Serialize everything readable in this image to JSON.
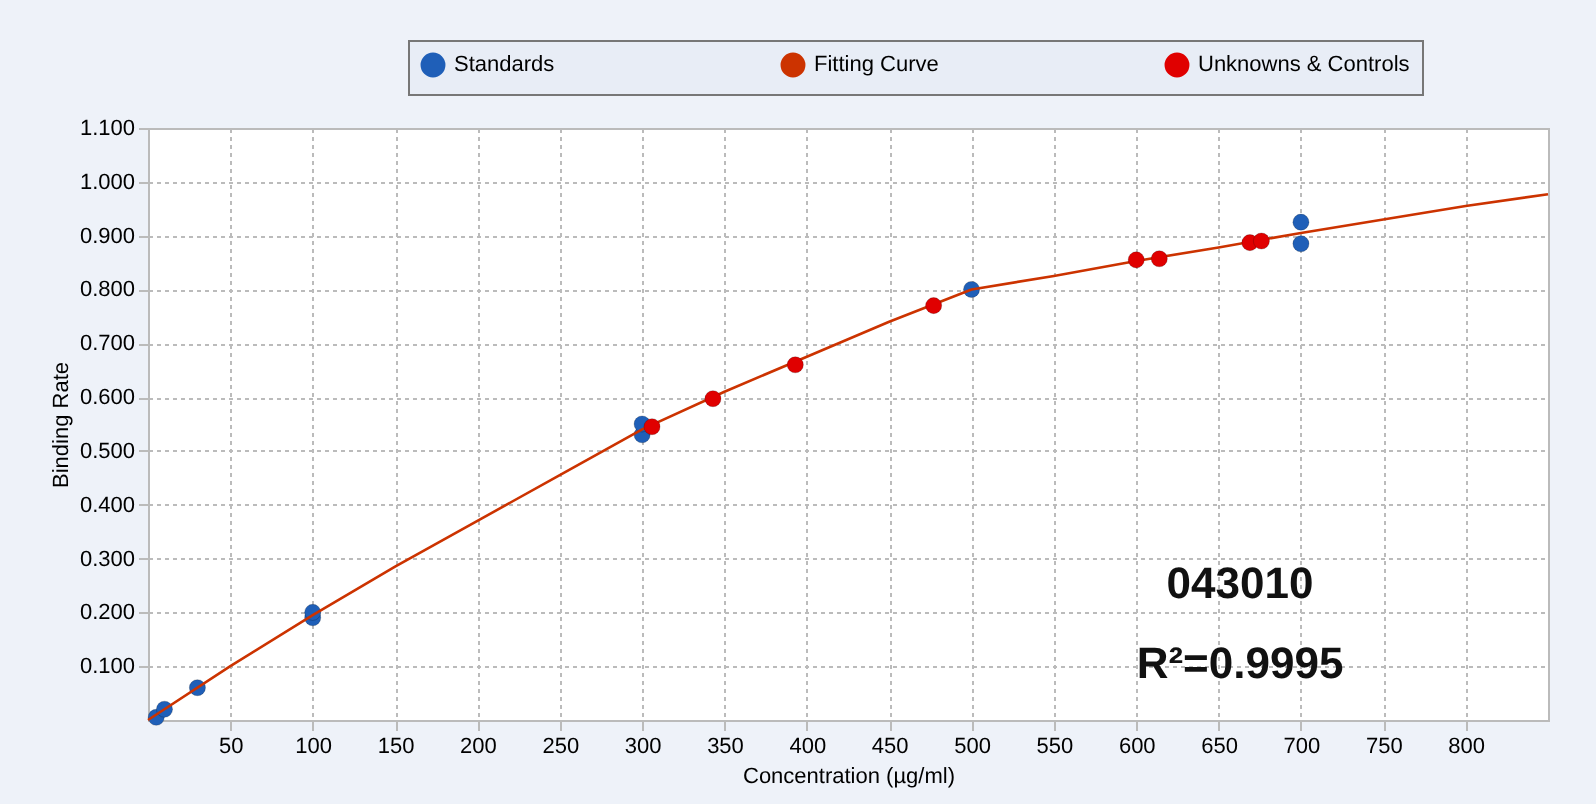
{
  "chart_data": {
    "type": "scatter",
    "xlabel": "Concentration (µg/ml)",
    "ylabel": "Binding Rate",
    "annotations": [
      "043010",
      "R²=0.9995"
    ],
    "xlim": [
      0,
      850
    ],
    "xticks": [
      50,
      100,
      150,
      200,
      250,
      300,
      350,
      400,
      450,
      500,
      550,
      600,
      650,
      700,
      750,
      800
    ],
    "ylim": [
      0,
      1.1
    ],
    "yticks": [
      {
        "value": 0.1,
        "label": "0.100"
      },
      {
        "value": 0.2,
        "label": "0.200"
      },
      {
        "value": 0.3,
        "label": "0.300"
      },
      {
        "value": 0.4,
        "label": "0.400"
      },
      {
        "value": 0.5,
        "label": "0.500"
      },
      {
        "value": 0.6,
        "label": "0.600"
      },
      {
        "value": 0.7,
        "label": "0.700"
      },
      {
        "value": 0.8,
        "label": "0.800"
      },
      {
        "value": 0.9,
        "label": "0.900"
      },
      {
        "value": 1.0,
        "label": "1.000"
      },
      {
        "value": 1.1,
        "label": "1.100"
      }
    ],
    "grid": true,
    "legend": "top",
    "series": [
      {
        "name": "Standards",
        "marker": "circle",
        "color": "#1f5fb8",
        "x": [
          5,
          10,
          30,
          100,
          100,
          300,
          300,
          500,
          700,
          700
        ],
        "values": [
          0.005,
          0.02,
          0.06,
          0.19,
          0.2,
          0.53,
          0.55,
          0.8,
          0.925,
          0.885
        ]
      },
      {
        "name": "Fitting Curve",
        "type": "line",
        "color": "#cc3300",
        "x": [
          0,
          50,
          100,
          150,
          200,
          250,
          300,
          350,
          400,
          450,
          500,
          550,
          600,
          650,
          700,
          750,
          800,
          850
        ],
        "values": [
          0,
          0.1,
          0.195,
          0.285,
          0.37,
          0.455,
          0.54,
          0.61,
          0.675,
          0.74,
          0.8,
          0.825,
          0.853,
          0.878,
          0.905,
          0.93,
          0.955,
          0.977
        ]
      },
      {
        "name": "Unknowns & Controls",
        "marker": "circle",
        "color": "#e00000",
        "x": [
          306,
          343,
          393,
          477,
          600,
          614,
          669,
          676
        ],
        "values": [
          0.545,
          0.597,
          0.66,
          0.77,
          0.855,
          0.857,
          0.887,
          0.89
        ]
      }
    ]
  }
}
